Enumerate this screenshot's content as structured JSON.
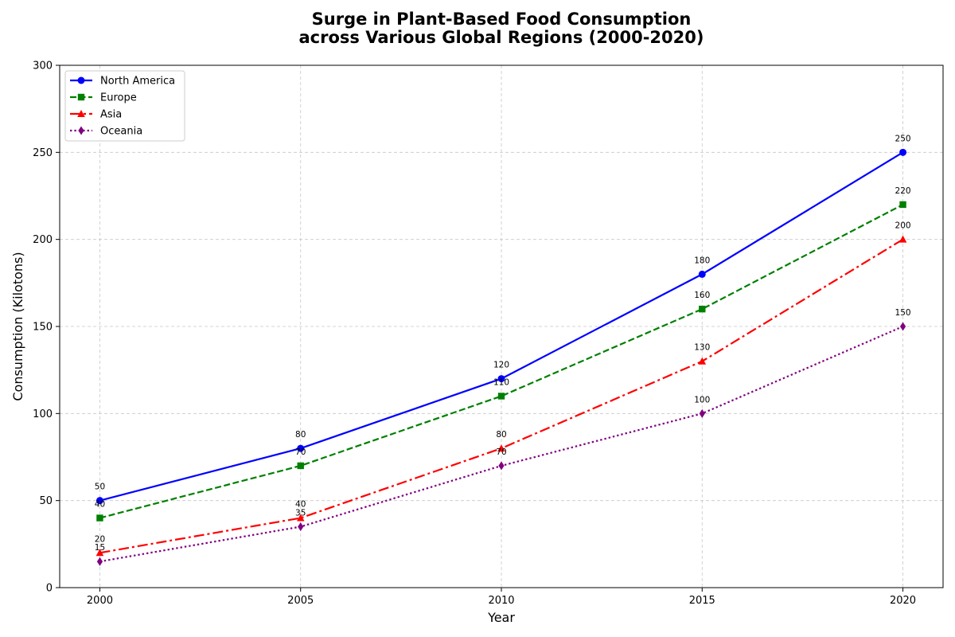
{
  "chart_data": {
    "type": "line",
    "title_line1": "Surge in Plant-Based Food Consumption",
    "title_line2": "across Various Global Regions (2000-2020)",
    "xlabel": "Year",
    "ylabel": "Consumption (Kilotons)",
    "x": [
      2000,
      2005,
      2010,
      2015,
      2020
    ],
    "xlim": [
      1999,
      2021
    ],
    "ylim": [
      0,
      300
    ],
    "xticks": [
      2000,
      2005,
      2010,
      2015,
      2020
    ],
    "yticks": [
      0,
      50,
      100,
      150,
      200,
      250,
      300
    ],
    "grid": true,
    "legend_position": "top-left",
    "series": [
      {
        "name": "North America",
        "values": [
          50,
          80,
          120,
          180,
          250
        ],
        "color": "#0000ff",
        "style": "solid",
        "marker": "circle"
      },
      {
        "name": "Europe",
        "values": [
          40,
          70,
          110,
          160,
          220
        ],
        "color": "#008000",
        "style": "dashed",
        "marker": "square"
      },
      {
        "name": "Asia",
        "values": [
          20,
          40,
          80,
          130,
          200
        ],
        "color": "#ff0000",
        "style": "dashdot",
        "marker": "triangle"
      },
      {
        "name": "Oceania",
        "values": [
          15,
          35,
          70,
          100,
          150
        ],
        "color": "#800080",
        "style": "dotted",
        "marker": "diamond"
      }
    ]
  }
}
